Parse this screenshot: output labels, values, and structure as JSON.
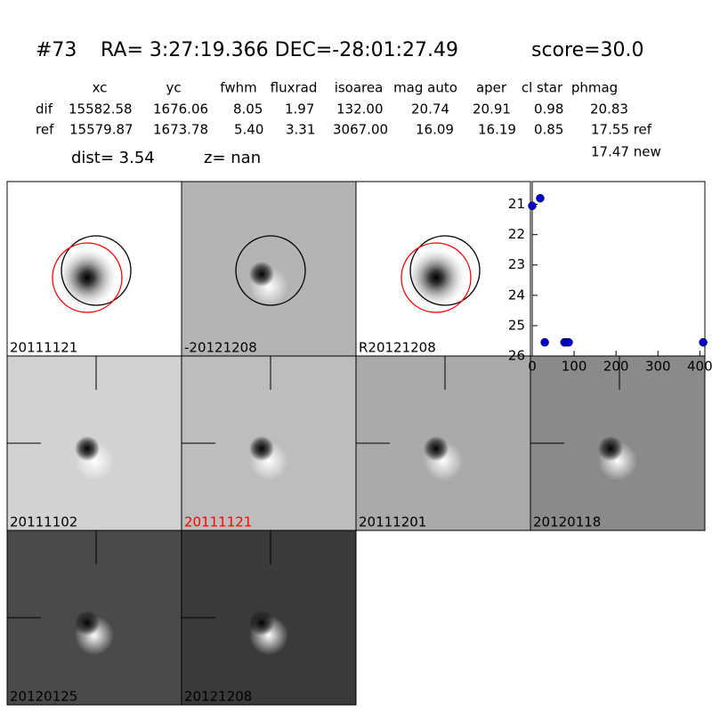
{
  "header": {
    "id": "#73",
    "coords": "RA= 3:27:19.366 DEC=-28:01:27.49",
    "score": "score=30.0"
  },
  "table": {
    "columns": [
      "xc",
      "yc",
      "fwhm",
      "fluxrad",
      "isoarea",
      "mag auto",
      "aper",
      "cl star",
      "phmag"
    ],
    "rows": [
      [
        "dif",
        "15582.58",
        "1676.06",
        "8.05",
        "1.97",
        "132.00",
        "20.74",
        "20.91",
        "0.98",
        "20.83"
      ],
      [
        "ref",
        "15579.87",
        "1673.78",
        "5.40",
        "3.31",
        "3067.00",
        "16.09",
        "16.19",
        "0.85",
        "17.55 ref"
      ]
    ],
    "extra": "17.47 new"
  },
  "stats": {
    "dist": "dist=  3.54",
    "z": "z=   nan"
  },
  "stamps": [
    {
      "label": "20111121",
      "color": "#000000"
    },
    {
      "label": "-20121208",
      "color": "#000000"
    },
    {
      "label": "R20121208",
      "color": "#000000"
    },
    {
      "label": "20111102",
      "color": "#000000"
    },
    {
      "label": "20111121",
      "color": "#ff0000"
    },
    {
      "label": "20111201",
      "color": "#000000"
    },
    {
      "label": "20120118",
      "color": "#000000"
    },
    {
      "label": "20120125",
      "color": "#000000"
    },
    {
      "label": "20121208",
      "color": "#000000"
    }
  ],
  "chart_data": {
    "type": "scatter",
    "x": [
      0,
      19,
      30,
      77,
      82,
      87,
      408
    ],
    "values": [
      21.05,
      20.8,
      25.55,
      25.55,
      25.55,
      25.55,
      25.55
    ],
    "color": "#0000cc",
    "xlim": [
      0,
      412
    ],
    "ylim": [
      26,
      20.25
    ],
    "xticks": [
      0,
      100,
      200,
      300,
      400
    ],
    "yticks": [
      21,
      22,
      23,
      24,
      25,
      26
    ]
  }
}
